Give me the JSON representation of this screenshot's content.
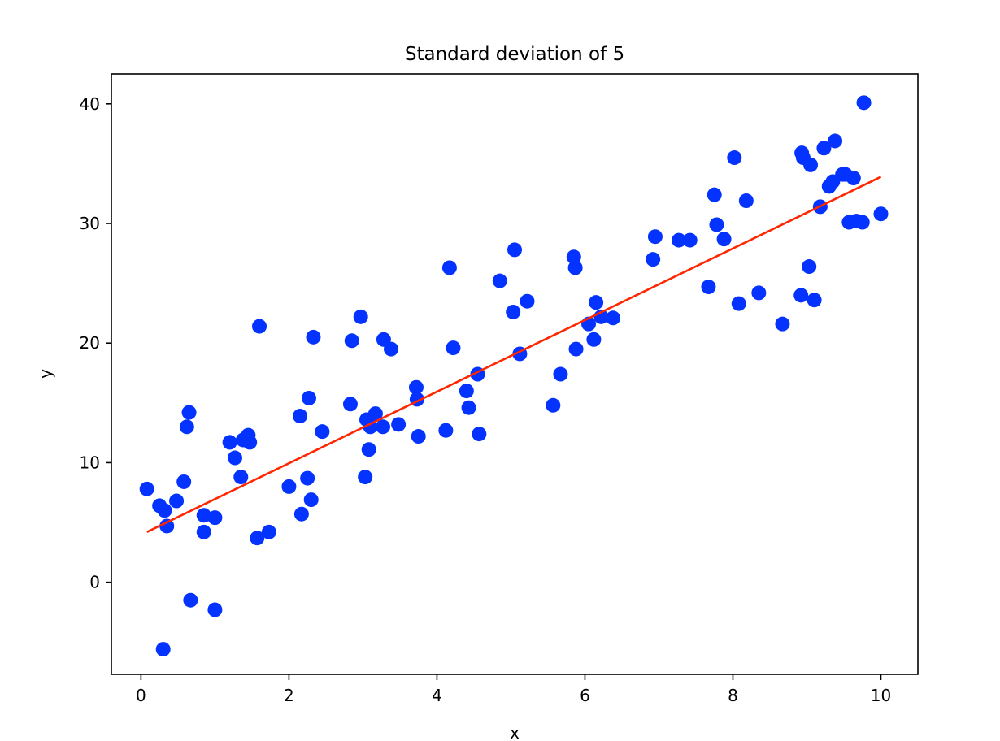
{
  "chart_data": {
    "type": "scatter",
    "title": "Standard deviation of 5",
    "xlabel": "x",
    "ylabel": "y",
    "xlim": [
      -0.4,
      10.5
    ],
    "ylim": [
      -7.7,
      42.5
    ],
    "xticks": [
      0,
      2,
      4,
      6,
      8,
      10
    ],
    "yticks": [
      0,
      10,
      20,
      30,
      40
    ],
    "xtick_labels": [
      "0",
      "2",
      "4",
      "6",
      "8",
      "10"
    ],
    "ytick_labels": [
      "0",
      "10",
      "20",
      "30",
      "40"
    ],
    "grid": false,
    "series": [
      {
        "kind": "scatter",
        "color": "#0433ff",
        "points": [
          [
            0.08,
            7.8
          ],
          [
            0.25,
            6.4
          ],
          [
            0.3,
            -5.6
          ],
          [
            0.32,
            6.0
          ],
          [
            0.35,
            4.7
          ],
          [
            0.48,
            6.8
          ],
          [
            0.58,
            8.4
          ],
          [
            0.62,
            13.0
          ],
          [
            0.65,
            14.2
          ],
          [
            0.67,
            -1.5
          ],
          [
            0.85,
            5.6
          ],
          [
            0.85,
            4.2
          ],
          [
            1.0,
            5.4
          ],
          [
            1.0,
            -2.3
          ],
          [
            1.2,
            11.7
          ],
          [
            1.27,
            10.4
          ],
          [
            1.35,
            8.8
          ],
          [
            1.38,
            11.9
          ],
          [
            1.45,
            12.3
          ],
          [
            1.47,
            11.7
          ],
          [
            1.57,
            3.7
          ],
          [
            1.6,
            21.4
          ],
          [
            1.73,
            4.2
          ],
          [
            2.0,
            8.0
          ],
          [
            2.15,
            13.9
          ],
          [
            2.17,
            5.7
          ],
          [
            2.25,
            8.7
          ],
          [
            2.27,
            15.4
          ],
          [
            2.3,
            6.9
          ],
          [
            2.33,
            20.5
          ],
          [
            2.45,
            12.6
          ],
          [
            2.83,
            14.9
          ],
          [
            2.85,
            20.2
          ],
          [
            2.97,
            22.2
          ],
          [
            3.03,
            8.8
          ],
          [
            3.05,
            13.6
          ],
          [
            3.08,
            11.1
          ],
          [
            3.1,
            13.0
          ],
          [
            3.17,
            14.1
          ],
          [
            3.27,
            13.0
          ],
          [
            3.28,
            20.3
          ],
          [
            3.38,
            19.5
          ],
          [
            3.48,
            13.2
          ],
          [
            3.72,
            16.3
          ],
          [
            3.73,
            15.3
          ],
          [
            3.75,
            12.2
          ],
          [
            4.12,
            12.7
          ],
          [
            4.17,
            26.3
          ],
          [
            4.22,
            19.6
          ],
          [
            4.4,
            16.0
          ],
          [
            4.43,
            14.6
          ],
          [
            4.55,
            17.4
          ],
          [
            4.57,
            12.4
          ],
          [
            4.85,
            25.2
          ],
          [
            5.03,
            22.6
          ],
          [
            5.05,
            27.8
          ],
          [
            5.12,
            19.1
          ],
          [
            5.22,
            23.5
          ],
          [
            5.57,
            14.8
          ],
          [
            5.67,
            17.4
          ],
          [
            5.85,
            27.2
          ],
          [
            5.87,
            26.3
          ],
          [
            5.88,
            19.5
          ],
          [
            6.05,
            21.6
          ],
          [
            6.12,
            20.3
          ],
          [
            6.15,
            23.4
          ],
          [
            6.22,
            22.2
          ],
          [
            6.38,
            22.1
          ],
          [
            6.92,
            27.0
          ],
          [
            6.95,
            28.9
          ],
          [
            7.27,
            28.6
          ],
          [
            7.42,
            28.6
          ],
          [
            7.67,
            24.7
          ],
          [
            7.75,
            32.4
          ],
          [
            7.78,
            29.9
          ],
          [
            7.88,
            28.7
          ],
          [
            8.02,
            35.5
          ],
          [
            8.08,
            23.3
          ],
          [
            8.18,
            31.9
          ],
          [
            8.35,
            24.2
          ],
          [
            8.67,
            21.6
          ],
          [
            8.92,
            24.0
          ],
          [
            8.93,
            35.9
          ],
          [
            8.95,
            35.5
          ],
          [
            9.03,
            26.4
          ],
          [
            9.05,
            34.9
          ],
          [
            9.1,
            23.6
          ],
          [
            9.18,
            31.4
          ],
          [
            9.23,
            36.3
          ],
          [
            9.3,
            33.1
          ],
          [
            9.35,
            33.5
          ],
          [
            9.38,
            36.9
          ],
          [
            9.48,
            34.1
          ],
          [
            9.52,
            34.1
          ],
          [
            9.57,
            30.1
          ],
          [
            9.63,
            33.8
          ],
          [
            9.67,
            30.2
          ],
          [
            9.75,
            30.1
          ],
          [
            9.77,
            40.1
          ],
          [
            10.0,
            30.8
          ]
        ]
      },
      {
        "kind": "line",
        "color": "#ff2600",
        "points": [
          [
            0.08,
            4.2
          ],
          [
            10.0,
            33.9
          ]
        ]
      }
    ]
  }
}
